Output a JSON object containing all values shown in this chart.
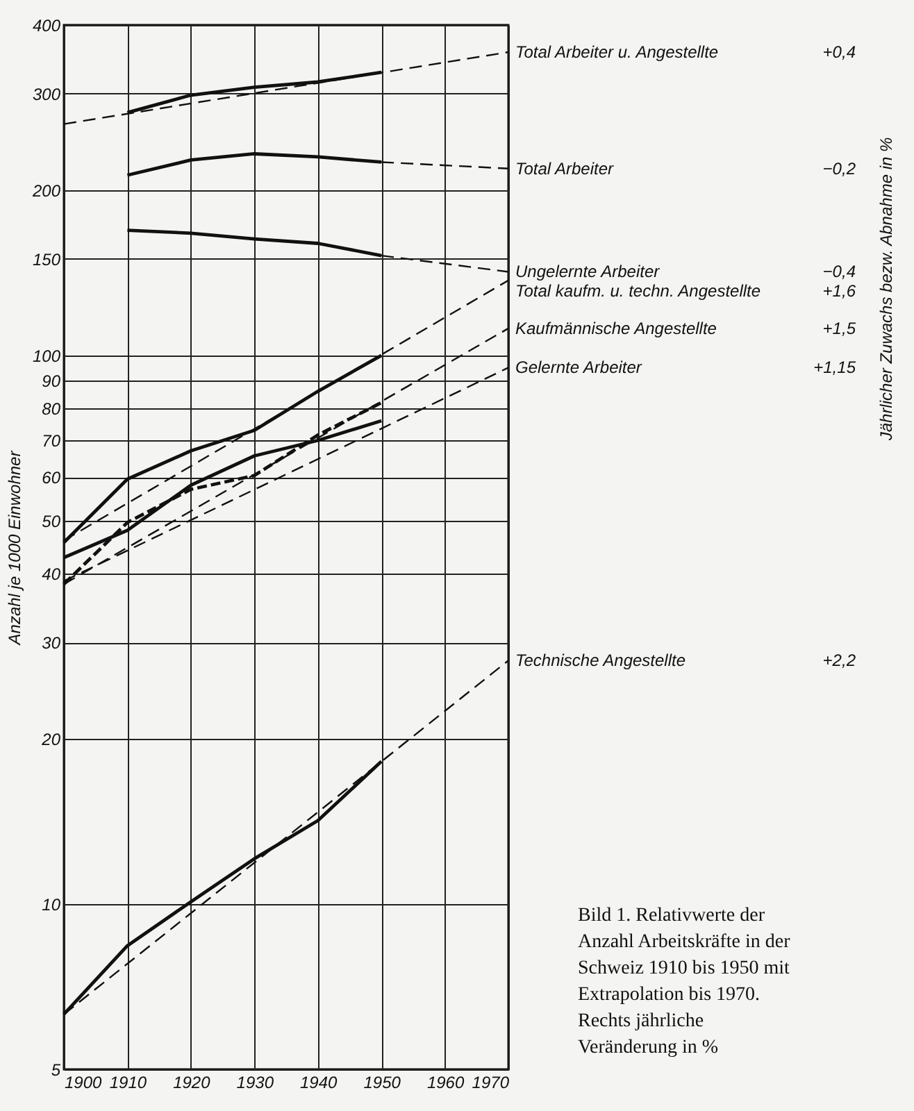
{
  "chart_data": {
    "type": "line",
    "ylabel": "Anzahl je 1000 Einwohner",
    "log": "y",
    "grid": true,
    "marker": "none",
    "xlim": [
      1900,
      1970
    ],
    "xticks": [
      1900,
      1910,
      1920,
      1930,
      1940,
      1950,
      1960,
      1970
    ],
    "ylim": [
      5,
      400
    ],
    "yticks": [
      5,
      10,
      20,
      30,
      40,
      50,
      60,
      70,
      80,
      90,
      100,
      150,
      200,
      300,
      400
    ],
    "series": [
      {
        "color": "#111111",
        "line_style": "solid",
        "x": [
          1910,
          1920,
          1930,
          1940,
          1950
        ],
        "values": [
          277,
          298,
          308,
          315,
          328
        ]
      },
      {
        "name": "Total Arbeiter u. Angestellte",
        "color": "#111111",
        "line_style": "dashed",
        "x": [
          1900,
          1970
        ],
        "values": [
          264,
          357
        ]
      },
      {
        "color": "#111111",
        "line_style": "solid",
        "x": [
          1910,
          1920,
          1930,
          1940,
          1950
        ],
        "values": [
          213,
          227,
          233,
          230,
          225
        ]
      },
      {
        "name": "Total Arbeiter",
        "color": "#111111",
        "line_style": "dashed",
        "x": [
          1950,
          1970
        ],
        "values": [
          225,
          219
        ]
      },
      {
        "color": "#111111",
        "line_style": "solid",
        "x": [
          1910,
          1920,
          1930,
          1940,
          1950
        ],
        "values": [
          169,
          167,
          163,
          160,
          152
        ]
      },
      {
        "name": "Ungelernte Arbeiter",
        "color": "#111111",
        "line_style": "dashed",
        "x": [
          1950,
          1970
        ],
        "values": [
          152,
          142
        ]
      },
      {
        "color": "#111111",
        "line_style": "solid",
        "x": [
          1900,
          1910,
          1920,
          1930,
          1940,
          1950
        ],
        "values": [
          45.6,
          59.5,
          67,
          73,
          86,
          100
        ]
      },
      {
        "name": "Total kaufm. u. techn. Angestellte",
        "color": "#111111",
        "line_style": "dashed",
        "x": [
          1900,
          1970
        ],
        "values": [
          46,
          137
        ]
      },
      {
        "color": "#111111",
        "line_style": "dashed",
        "x": [
          1900,
          1910,
          1920,
          1930,
          1940,
          1950
        ],
        "values": [
          38.3,
          49.6,
          57,
          60.4,
          71.6,
          82
        ]
      },
      {
        "name": "Kaufmännische Angestellte",
        "color": "#111111",
        "line_style": "dashed",
        "x": [
          1900,
          1970
        ],
        "values": [
          38.3,
          112
        ]
      },
      {
        "color": "#111111",
        "line_style": "solid",
        "x": [
          1900,
          1910,
          1920,
          1930,
          1940,
          1950
        ],
        "values": [
          42.8,
          48,
          58,
          65.6,
          70,
          76
        ]
      },
      {
        "name": "Gelernte Arbeiter",
        "color": "#111111",
        "line_style": "dashed",
        "x": [
          1900,
          1970
        ],
        "values": [
          38.8,
          95
        ]
      },
      {
        "color": "#111111",
        "line_style": "solid",
        "x": [
          1900,
          1910,
          1920,
          1930,
          1940,
          1950
        ],
        "values": [
          6.3,
          8.4,
          10.1,
          12.1,
          14.2,
          18.2
        ]
      },
      {
        "name": "Technische Angestellte",
        "color": "#111111",
        "line_style": "dashed",
        "x": [
          1900,
          1970
        ],
        "values": [
          6.3,
          27.8
        ]
      }
    ],
    "annotations": [
      "+0,4",
      "−0,2",
      "−0,4",
      "+1,6",
      "+1,5",
      "+1,15",
      "+2,2",
      "Jährlicher Zuwachs bezw. Abnahme in %",
      "Bild 1. Relativwerte der Anzahl Arbeitskräfte in der Schweiz 1910 bis 1950 mit Extrapolation bis 1970. Rechts jährliche Veränderung in %"
    ]
  }
}
